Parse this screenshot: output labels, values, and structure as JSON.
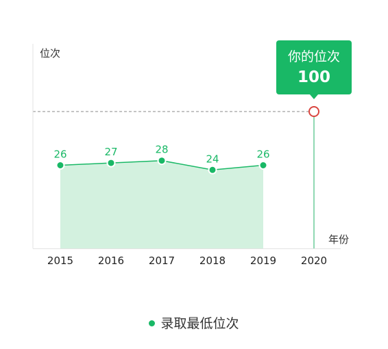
{
  "chart_data": {
    "type": "area",
    "ylabel": "位次",
    "xlabel": "年份",
    "categories": [
      "2015",
      "2016",
      "2017",
      "2018",
      "2019",
      "2020"
    ],
    "series": [
      {
        "name": "录取最低位次",
        "x": [
          "2015",
          "2016",
          "2017",
          "2018",
          "2019"
        ],
        "values": [
          26,
          27,
          28,
          24,
          26
        ]
      }
    ],
    "marker": {
      "x": "2020",
      "value": 100,
      "label": "你的位次"
    },
    "legend_position": "bottom"
  },
  "colors": {
    "accent": "#19b866",
    "area_fill": "#d3f1df",
    "marker_ring": "#d9453f",
    "reference_line": "#888888"
  }
}
